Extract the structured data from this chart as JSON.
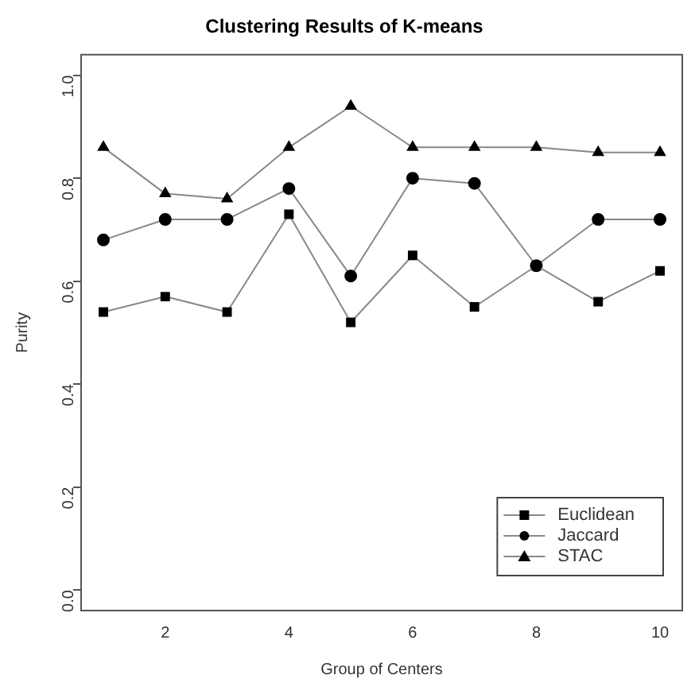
{
  "chart_data": {
    "type": "line",
    "title": "Clustering Results of K-means",
    "xlabel": "Group of Centers",
    "ylabel": "Purity",
    "x": [
      1,
      2,
      3,
      4,
      5,
      6,
      7,
      8,
      9,
      10
    ],
    "xlim": [
      0.64,
      10.36
    ],
    "xticks": [
      2,
      4,
      6,
      8,
      10
    ],
    "ylim": [
      -0.04,
      1.04
    ],
    "yticks": [
      {
        "value": 0,
        "label": "0.0"
      },
      {
        "value": 0.2,
        "label": "0.2"
      },
      {
        "value": 0.4,
        "label": "0.4"
      },
      {
        "value": 0.6,
        "label": "0.6"
      },
      {
        "value": 0.8,
        "label": "0.8"
      },
      {
        "value": 1,
        "label": "1.0"
      }
    ],
    "grid": false,
    "legend": "bottom right",
    "line_style": "solid",
    "series": [
      {
        "name": "Euclidean",
        "color": "#000000",
        "marker": "square",
        "values": [
          0.54,
          0.57,
          0.54,
          0.73,
          0.52,
          0.65,
          0.55,
          0.63,
          0.56,
          0.62
        ]
      },
      {
        "name": "Jaccard",
        "color": "#000000",
        "marker": "circle",
        "values": [
          0.68,
          0.72,
          0.72,
          0.78,
          0.61,
          0.8,
          0.79,
          0.63,
          0.72,
          0.72
        ]
      },
      {
        "name": "STAC",
        "color": "#000000",
        "marker": "triangle",
        "values": [
          0.86,
          0.77,
          0.76,
          0.86,
          0.94,
          0.86,
          0.86,
          0.86,
          0.85,
          0.85
        ]
      }
    ]
  }
}
